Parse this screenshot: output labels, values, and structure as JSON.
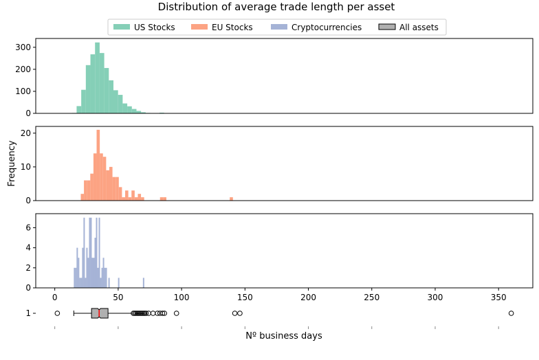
{
  "chart_data": {
    "title": "Distribution of average trade length per asset",
    "xlabel": "Nº business days",
    "ylabel": "Frequency",
    "xlim": [
      -15,
      377
    ],
    "xticks": [
      "0",
      "50",
      "100",
      "150",
      "200",
      "250",
      "300",
      "350"
    ],
    "xtick_values": [
      0,
      50,
      100,
      150,
      200,
      250,
      300,
      350
    ],
    "grid": false,
    "legend": {
      "placement": "top-center",
      "entries": [
        {
          "label": "US Stocks",
          "color": "#85cfb7"
        },
        {
          "label": "EU Stocks",
          "color": "#fca383"
        },
        {
          "label": "Cryptocurrencies",
          "color": "#a5b3d6"
        },
        {
          "label": "All assets",
          "color": "#b0b0b0"
        }
      ]
    },
    "histograms": [
      {
        "type": "bar",
        "name": "US Stocks",
        "color": "#85cfb7",
        "ylim": [
          0,
          340
        ],
        "yticks": [
          "0",
          "100",
          "200",
          "300"
        ],
        "ytick_values": [
          0,
          100,
          200,
          300
        ],
        "bin_start": 13.6,
        "bin_width": 3.63,
        "counts": [
          2,
          33,
          107,
          219,
          268,
          322,
          274,
          206,
          150,
          105,
          84,
          45,
          32,
          20,
          11,
          5,
          2,
          0,
          0,
          3
        ]
      },
      {
        "type": "bar",
        "name": "EU Stocks",
        "color": "#fca383",
        "ylim": [
          0,
          22
        ],
        "yticks": [
          "0",
          "10",
          "20"
        ],
        "ytick_values": [
          0,
          10,
          20
        ],
        "bin_start": 20.5,
        "bin_width": 2.5,
        "counts": [
          2,
          6,
          6,
          8,
          14,
          21,
          14,
          13,
          9,
          10,
          7,
          7,
          4,
          1,
          3,
          1,
          3,
          1,
          2,
          1,
          0,
          0,
          0,
          0,
          0,
          1,
          1,
          0,
          0,
          0,
          0,
          0,
          0,
          0,
          0,
          0,
          0,
          0,
          0,
          0,
          0,
          0,
          0,
          0,
          0,
          0,
          0,
          1
        ]
      },
      {
        "type": "bar",
        "name": "Cryptocurrencies",
        "color": "#a5b3d6",
        "ylim": [
          0,
          7.4
        ],
        "yticks": [
          "0",
          "2",
          "4",
          "6"
        ],
        "ytick_values": [
          0,
          2,
          4,
          6
        ],
        "bin_start": 15,
        "bin_width": 1.09,
        "counts": [
          2,
          2,
          4,
          3,
          1,
          1,
          4,
          7,
          1,
          4,
          3,
          7,
          7,
          3,
          3,
          5,
          7,
          2,
          7,
          1,
          2,
          3,
          2,
          2,
          0,
          1,
          0,
          0,
          0,
          0,
          0,
          0,
          1,
          0,
          0,
          0,
          0,
          0,
          0,
          0,
          0,
          0,
          0,
          0,
          0,
          0,
          0,
          0,
          0,
          0,
          1
        ]
      }
    ],
    "boxplot": {
      "type": "box",
      "name": "All assets",
      "ytick": "1",
      "color": "#b0b0b0",
      "median_color": "#ff0000",
      "notched": true,
      "whisker_low": 15,
      "q1": 29,
      "median": 35,
      "q3": 42,
      "whisker_high": 61,
      "outliers": [
        2,
        62,
        63,
        64,
        65,
        66,
        67,
        68,
        69,
        70,
        71,
        72,
        74,
        77.5,
        81,
        83,
        85,
        86.5,
        96,
        142,
        146,
        360
      ]
    }
  }
}
